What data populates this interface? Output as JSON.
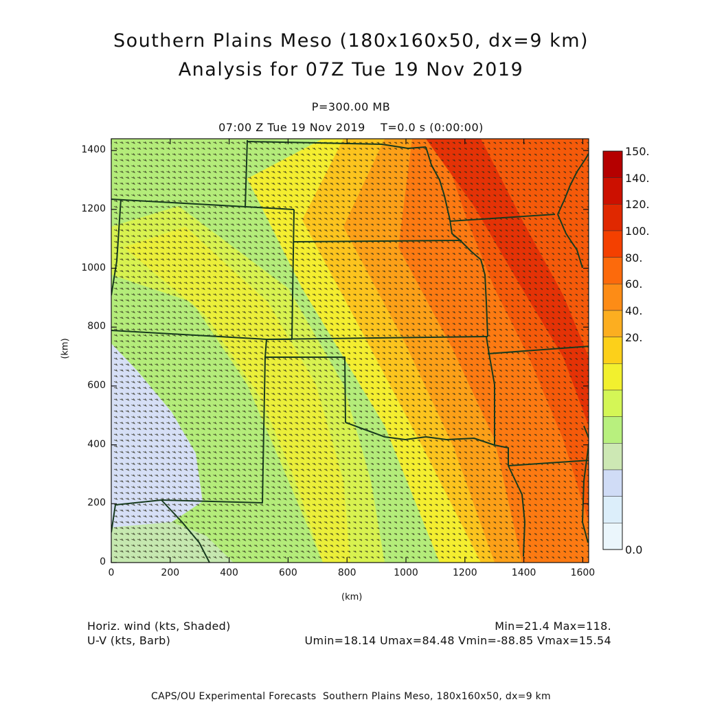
{
  "title_line1": "Southern Plains Meso (180x160x50, dx=9 km)",
  "title_line2": "Analysis for 07Z Tue 19 Nov 2019",
  "level": "P=300.00 MB",
  "time_line": "07:00 Z Tue 19 Nov 2019    T=0.0 s (0:00:00)",
  "axes": {
    "x_label": "(km)",
    "y_label": "(km)",
    "x_ticks": [
      "0",
      "200",
      "400",
      "600",
      "800",
      "1000",
      "1200",
      "1400",
      "1600"
    ],
    "y_ticks": [
      "0",
      "200",
      "400",
      "600",
      "800",
      "1000",
      "1200",
      "1400"
    ],
    "x_range": [
      0,
      1620
    ],
    "y_range": [
      0,
      1440
    ]
  },
  "colorbar": {
    "labels": [
      "150.",
      "140.",
      "120.",
      "100.",
      "80.",
      "60.",
      "40.",
      "20.",
      "0.0"
    ],
    "colors": [
      "#b50000",
      "#cc1000",
      "#e02800",
      "#f44000",
      "#fc6a0c",
      "#fd8c16",
      "#fcae20",
      "#fcd01a",
      "#f2f02e",
      "#d4f656",
      "#b8f07e",
      "#cde8b4",
      "#d0dcf6",
      "#dceefa",
      "#ebf6fc"
    ]
  },
  "legend_left": {
    "line1": "Horiz. wind (kts, Shaded)",
    "line2": "U-V (kts, Barb)"
  },
  "legend_right": {
    "line1": "Min=21.4 Max=118.",
    "line2": "Umin=18.14 Umax=84.48 Vmin=-88.85 Vmax=15.54"
  },
  "footer": "CAPS/OU Experimental Forecasts  Southern Plains Meso, 180x160x50, dx=9 km",
  "field_colors": {
    "c20": "#d6dff6",
    "c30": "#c6e8b0",
    "c40": "#b4ec7a",
    "c55": "#d8f250",
    "c65": "#f4ee30",
    "c75": "#fcc41e",
    "c85": "#fca018",
    "c95": "#fc7a12",
    "c105": "#f55a0a",
    "c115": "#e43206",
    "border": "#173a1e",
    "barb": "#2c2c1a"
  }
}
